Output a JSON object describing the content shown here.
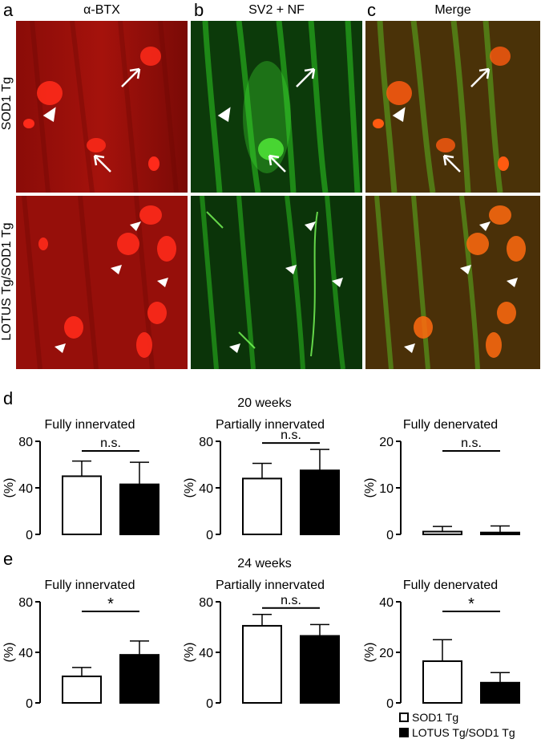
{
  "panels": {
    "a": {
      "letter": "a",
      "title": "α-BTX"
    },
    "b": {
      "letter": "b",
      "title": "SV2 + NF"
    },
    "c": {
      "letter": "c",
      "title": "Merge"
    }
  },
  "rows": {
    "top": "SOD1 Tg",
    "bottom": "LOTUS Tg/SOD1 Tg"
  },
  "colors": {
    "red_channel": "#b3120d",
    "green_channel": "#22c41a",
    "merge_bg": "#5a3a10"
  },
  "section_d": {
    "letter": "d",
    "title": "20 weeks"
  },
  "section_e": {
    "letter": "e",
    "title": "24 weeks"
  },
  "legend": {
    "sod1": "SOD1 Tg",
    "lotus": "LOTUS Tg/SOD1 Tg"
  },
  "chart_data": [
    {
      "type": "bar",
      "title": "Fully innervated",
      "week": "20 weeks",
      "ylabel": "(%)",
      "ylim": [
        0,
        80
      ],
      "yticks": [
        0,
        40,
        80
      ],
      "series": [
        {
          "name": "SOD1 Tg",
          "value": 50,
          "error": 13
        },
        {
          "name": "LOTUS Tg/SOD1 Tg",
          "value": 43,
          "error": 19
        }
      ],
      "significance": "n.s."
    },
    {
      "type": "bar",
      "title": "Partially innervated",
      "week": "20 weeks",
      "ylabel": "(%)",
      "ylim": [
        0,
        80
      ],
      "yticks": [
        0,
        40,
        80
      ],
      "series": [
        {
          "name": "SOD1 Tg",
          "value": 48,
          "error": 13
        },
        {
          "name": "LOTUS Tg/SOD1 Tg",
          "value": 55,
          "error": 18
        }
      ],
      "significance": "n.s."
    },
    {
      "type": "bar",
      "title": "Fully denervated",
      "week": "20 weeks",
      "ylabel": "(%)",
      "ylim": [
        0,
        20
      ],
      "yticks": [
        0,
        10,
        20
      ],
      "series": [
        {
          "name": "SOD1 Tg",
          "value": 0.6,
          "error": 1.1
        },
        {
          "name": "LOTUS Tg/SOD1 Tg",
          "value": 0.4,
          "error": 1.4
        }
      ],
      "significance": "n.s."
    },
    {
      "type": "bar",
      "title": "Fully innervated",
      "week": "24 weeks",
      "ylabel": "(%)",
      "ylim": [
        0,
        80
      ],
      "yticks": [
        0,
        40,
        80
      ],
      "series": [
        {
          "name": "SOD1 Tg",
          "value": 21,
          "error": 7
        },
        {
          "name": "LOTUS Tg/SOD1 Tg",
          "value": 38,
          "error": 11
        }
      ],
      "significance": "*"
    },
    {
      "type": "bar",
      "title": "Partially innervated",
      "week": "24 weeks",
      "ylabel": "(%)",
      "ylim": [
        0,
        80
      ],
      "yticks": [
        0,
        40,
        80
      ],
      "series": [
        {
          "name": "SOD1 Tg",
          "value": 61,
          "error": 9
        },
        {
          "name": "LOTUS Tg/SOD1 Tg",
          "value": 53,
          "error": 9
        }
      ],
      "significance": "n.s."
    },
    {
      "type": "bar",
      "title": "Fully denervated",
      "week": "24 weeks",
      "ylabel": "(%)",
      "ylim": [
        0,
        40
      ],
      "yticks": [
        0,
        20,
        40
      ],
      "series": [
        {
          "name": "SOD1 Tg",
          "value": 16.5,
          "error": 8.5
        },
        {
          "name": "LOTUS Tg/SOD1 Tg",
          "value": 8,
          "error": 4
        }
      ],
      "significance": "*"
    }
  ]
}
